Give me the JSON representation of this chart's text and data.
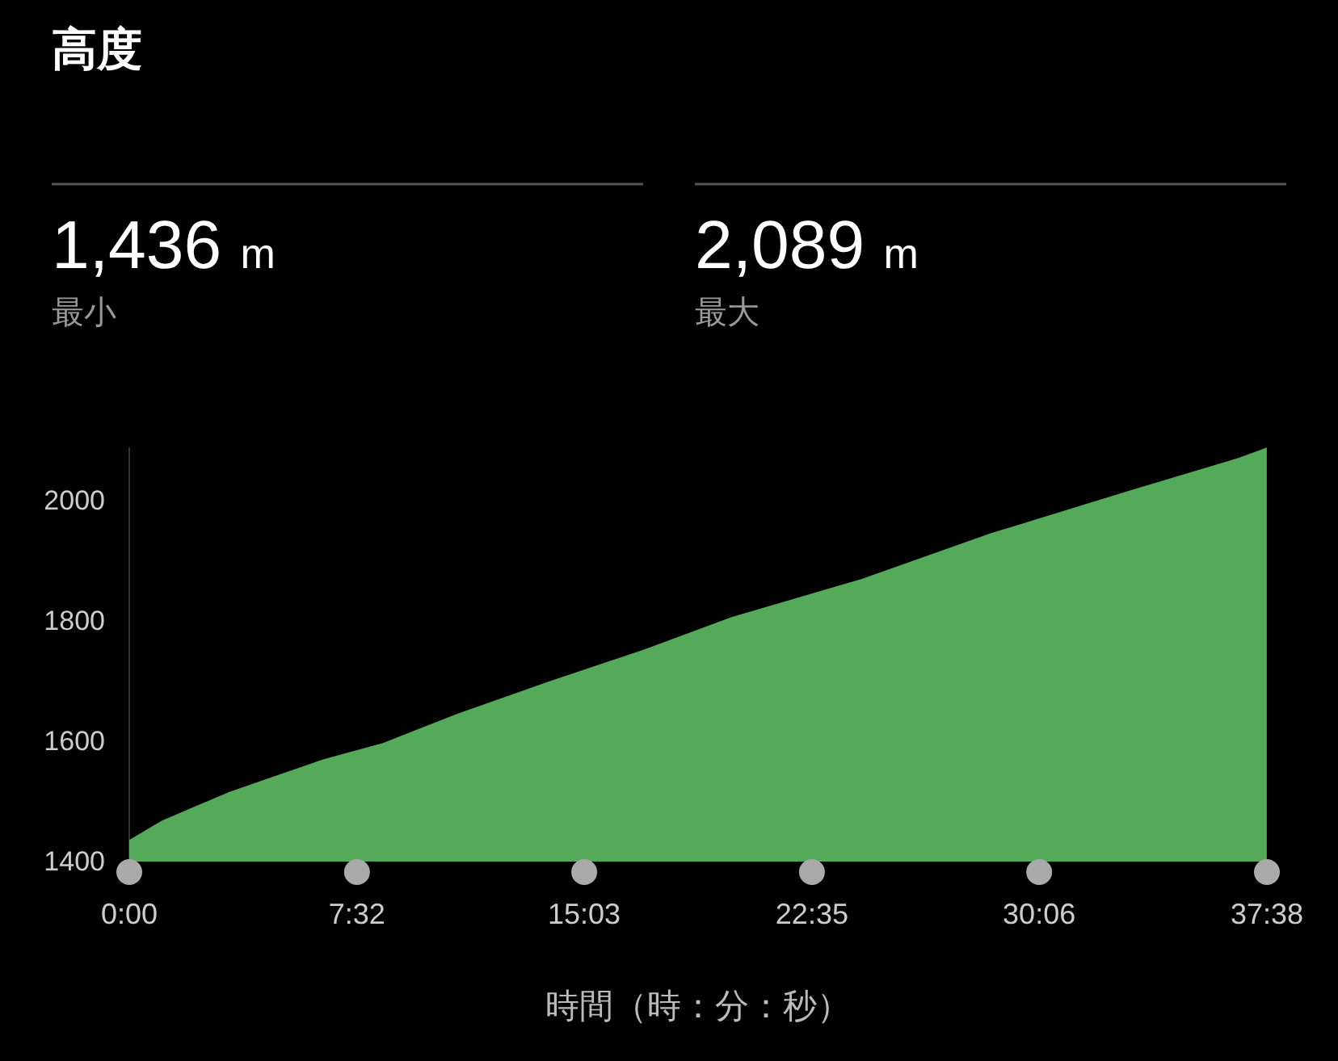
{
  "chart_data": {
    "type": "area",
    "title": "高度",
    "xlabel": "時間（時：分：秒）",
    "annotations": [
      "1,436 m",
      "最小",
      "2,089 m",
      "最大"
    ],
    "x": [
      0,
      1.07,
      3.31,
      6.41,
      8.39,
      10.85,
      13.9,
      16.57,
      17.1,
      19.94,
      24.21,
      28.49,
      33.14,
      36.72,
      37.63
    ],
    "series": [
      {
        "color": "#55aa5a",
        "values": [
          1436,
          1468,
          1516,
          1570,
          1597,
          1646,
          1700,
          1745,
          1754,
          1807,
          1870,
          1946,
          2018,
          2072,
          2089
        ]
      }
    ],
    "xlim": [
      0,
      37.633
    ],
    "ylim": [
      1400,
      2089
    ],
    "xticks": [
      {
        "value": 0,
        "label": "0:00"
      },
      {
        "value": 7.533,
        "label": "7:32"
      },
      {
        "value": 15.05,
        "label": "15:03"
      },
      {
        "value": 22.583,
        "label": "22:35"
      },
      {
        "value": 30.1,
        "label": "30:06"
      },
      {
        "value": 37.633,
        "label": "37:38"
      }
    ],
    "yticks": [
      1400,
      1600,
      1800,
      2000
    ],
    "grid": false
  }
}
